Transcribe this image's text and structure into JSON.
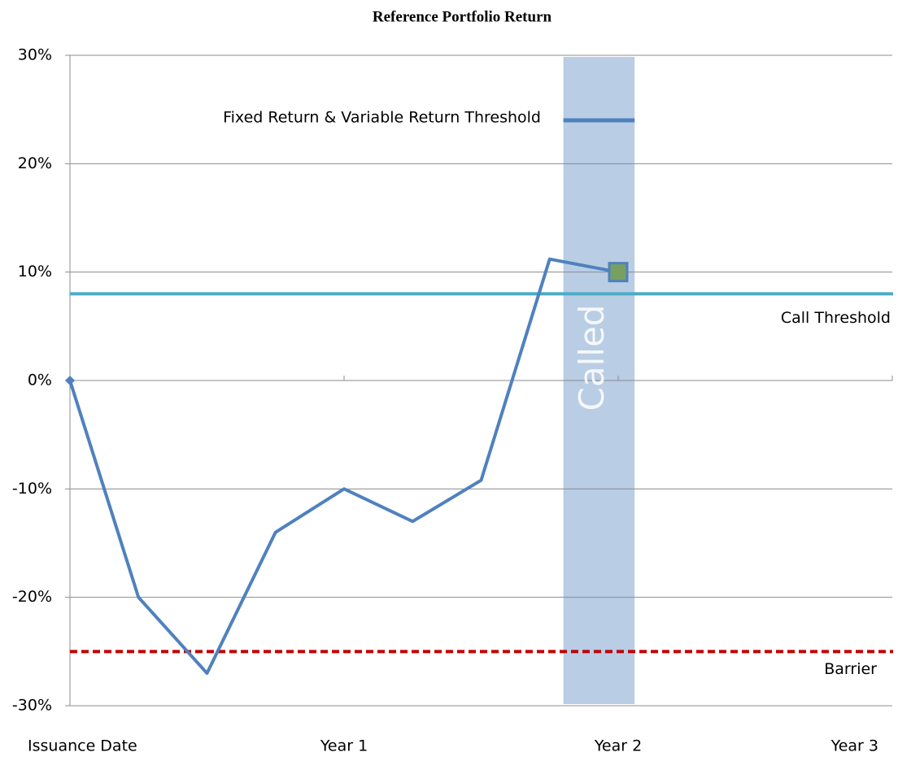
{
  "chart_data": {
    "type": "line",
    "title": "Reference Portfolio Return",
    "x": [
      0,
      0.25,
      0.5,
      0.75,
      1,
      1.25,
      1.5,
      1.75,
      2
    ],
    "series": [
      {
        "color": "#4f81bd",
        "values": [
          0,
          -20,
          -27,
          -14,
          -10,
          -13,
          -9.2,
          11.2,
          10
        ]
      }
    ],
    "end_marker_color": "#77a060",
    "xlim": [
      0,
      3
    ],
    "xticks": [
      {
        "value": 0,
        "label": "Issuance Date"
      },
      {
        "value": 1,
        "label": "Year 1"
      },
      {
        "value": 2,
        "label": "Year 2"
      },
      {
        "value": 3,
        "label": "Year 3"
      }
    ],
    "ylim": [
      -30,
      30
    ],
    "yticks": [
      {
        "value": -30,
        "label": "-30%"
      },
      {
        "value": -20,
        "label": "-20%"
      },
      {
        "value": -10,
        "label": "-10%"
      },
      {
        "value": 0,
        "label": "0%"
      },
      {
        "value": 10,
        "label": "10%"
      },
      {
        "value": 20,
        "label": "20%"
      },
      {
        "value": 30,
        "label": "30%"
      }
    ],
    "grid": true,
    "band": {
      "label": "Called",
      "x": [
        1.8,
        2.06
      ],
      "color": "#b9cde5"
    },
    "segment": {
      "label": "Fixed Return & Variable Return Threshold",
      "value": 24,
      "x": [
        1.8,
        2.06
      ],
      "color": "#4f81bd"
    },
    "reference_lines": [
      {
        "label": "Call Threshold",
        "value": 8,
        "color": "#4bacc6",
        "dashed": false
      },
      {
        "label": "Barrier",
        "value": -25,
        "color": "#c00000",
        "dashed": true
      }
    ]
  }
}
